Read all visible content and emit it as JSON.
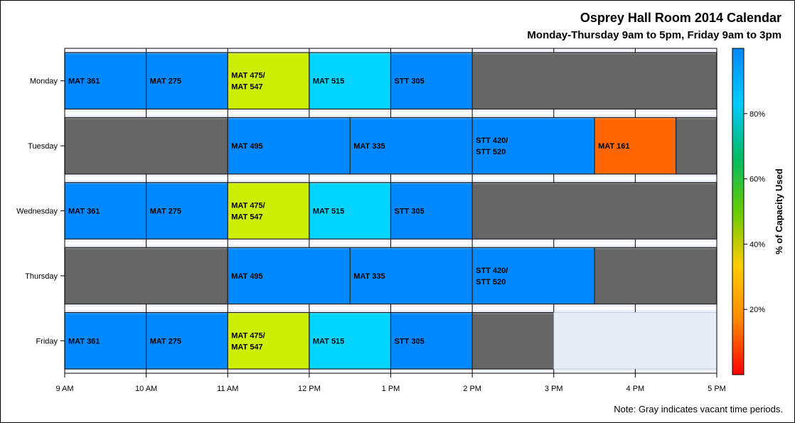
{
  "chart_data": {
    "type": "timeline",
    "title": "Osprey Hall Room 2014 Calendar",
    "subtitle": "Monday-Thursday 9am to 5pm, Friday 9am to 3pm",
    "note": "Note: Gray indicates vacant time periods.",
    "days": [
      "Monday",
      "Tuesday",
      "Wednesday",
      "Thursday",
      "Friday"
    ],
    "x_ticks": [
      {
        "hour": 9,
        "label": "9 AM"
      },
      {
        "hour": 10,
        "label": "10 AM"
      },
      {
        "hour": 11,
        "label": "11 AM"
      },
      {
        "hour": 12,
        "label": "12 PM"
      },
      {
        "hour": 13,
        "label": "1 PM"
      },
      {
        "hour": 14,
        "label": "2 PM"
      },
      {
        "hour": 15,
        "label": "3 PM"
      },
      {
        "hour": 16,
        "label": "4 PM"
      },
      {
        "hour": 17,
        "label": "5 PM"
      }
    ],
    "xlim": [
      9,
      17
    ],
    "colorbar": {
      "title": "% of Capacity Used",
      "range": [
        0,
        100
      ],
      "ticks": [
        {
          "value": 20,
          "label": "20%"
        },
        {
          "value": 40,
          "label": "40%"
        },
        {
          "value": 60,
          "label": "60%"
        },
        {
          "value": 80,
          "label": "80%"
        }
      ],
      "gradient": [
        "#ff0000",
        "#ff8800",
        "#ffcc00",
        "#66cc00",
        "#00bb66",
        "#00ccff",
        "#0088ff"
      ]
    },
    "colors": {
      "vacant": "#666666",
      "unscheduled": "#e8ecf6",
      "full_blue": "#0088ff",
      "yellow_green": "#ccee00",
      "cyan": "#00d4ff",
      "orange": "#ff6600"
    },
    "blocks": [
      {
        "day": "Monday",
        "start": 9,
        "end": 10,
        "label": [
          "MAT 361"
        ],
        "color": "full_blue"
      },
      {
        "day": "Monday",
        "start": 10,
        "end": 11,
        "label": [
          "MAT 275"
        ],
        "color": "full_blue"
      },
      {
        "day": "Monday",
        "start": 11,
        "end": 12,
        "label": [
          "MAT 475/",
          "MAT 547"
        ],
        "color": "yellow_green"
      },
      {
        "day": "Monday",
        "start": 12,
        "end": 13,
        "label": [
          "MAT 515"
        ],
        "color": "cyan"
      },
      {
        "day": "Monday",
        "start": 13,
        "end": 14,
        "label": [
          "STT 305"
        ],
        "color": "full_blue"
      },
      {
        "day": "Monday",
        "start": 14,
        "end": 17,
        "label": [],
        "color": "vacant"
      },
      {
        "day": "Tuesday",
        "start": 9,
        "end": 11,
        "label": [],
        "color": "vacant"
      },
      {
        "day": "Tuesday",
        "start": 11,
        "end": 12.5,
        "label": [
          "MAT 495"
        ],
        "color": "full_blue"
      },
      {
        "day": "Tuesday",
        "start": 12.5,
        "end": 14,
        "label": [
          "MAT 335"
        ],
        "color": "full_blue"
      },
      {
        "day": "Tuesday",
        "start": 14,
        "end": 15.5,
        "label": [
          "STT 420/",
          "STT 520"
        ],
        "color": "full_blue"
      },
      {
        "day": "Tuesday",
        "start": 15.5,
        "end": 16.5,
        "label": [
          "MAT 161"
        ],
        "color": "orange"
      },
      {
        "day": "Tuesday",
        "start": 16.5,
        "end": 17,
        "label": [],
        "color": "vacant"
      },
      {
        "day": "Wednesday",
        "start": 9,
        "end": 10,
        "label": [
          "MAT 361"
        ],
        "color": "full_blue"
      },
      {
        "day": "Wednesday",
        "start": 10,
        "end": 11,
        "label": [
          "MAT 275"
        ],
        "color": "full_blue"
      },
      {
        "day": "Wednesday",
        "start": 11,
        "end": 12,
        "label": [
          "MAT 475/",
          "MAT 547"
        ],
        "color": "yellow_green"
      },
      {
        "day": "Wednesday",
        "start": 12,
        "end": 13,
        "label": [
          "MAT 515"
        ],
        "color": "cyan"
      },
      {
        "day": "Wednesday",
        "start": 13,
        "end": 14,
        "label": [
          "STT 305"
        ],
        "color": "full_blue"
      },
      {
        "day": "Wednesday",
        "start": 14,
        "end": 17,
        "label": [],
        "color": "vacant"
      },
      {
        "day": "Thursday",
        "start": 9,
        "end": 11,
        "label": [],
        "color": "vacant"
      },
      {
        "day": "Thursday",
        "start": 11,
        "end": 12.5,
        "label": [
          "MAT 495"
        ],
        "color": "full_blue"
      },
      {
        "day": "Thursday",
        "start": 12.5,
        "end": 14,
        "label": [
          "MAT 335"
        ],
        "color": "full_blue"
      },
      {
        "day": "Thursday",
        "start": 14,
        "end": 15.5,
        "label": [
          "STT 420/",
          "STT 520"
        ],
        "color": "full_blue"
      },
      {
        "day": "Thursday",
        "start": 15.5,
        "end": 17,
        "label": [],
        "color": "vacant"
      },
      {
        "day": "Friday",
        "start": 9,
        "end": 10,
        "label": [
          "MAT 361"
        ],
        "color": "full_blue"
      },
      {
        "day": "Friday",
        "start": 10,
        "end": 11,
        "label": [
          "MAT 275"
        ],
        "color": "full_blue"
      },
      {
        "day": "Friday",
        "start": 11,
        "end": 12,
        "label": [
          "MAT 475/",
          "MAT 547"
        ],
        "color": "yellow_green"
      },
      {
        "day": "Friday",
        "start": 12,
        "end": 13,
        "label": [
          "MAT 515"
        ],
        "color": "cyan"
      },
      {
        "day": "Friday",
        "start": 13,
        "end": 14,
        "label": [
          "STT 305"
        ],
        "color": "full_blue"
      },
      {
        "day": "Friday",
        "start": 14,
        "end": 15,
        "label": [],
        "color": "vacant"
      },
      {
        "day": "Friday",
        "start": 15,
        "end": 17,
        "label": [],
        "color": "unscheduled"
      }
    ]
  }
}
